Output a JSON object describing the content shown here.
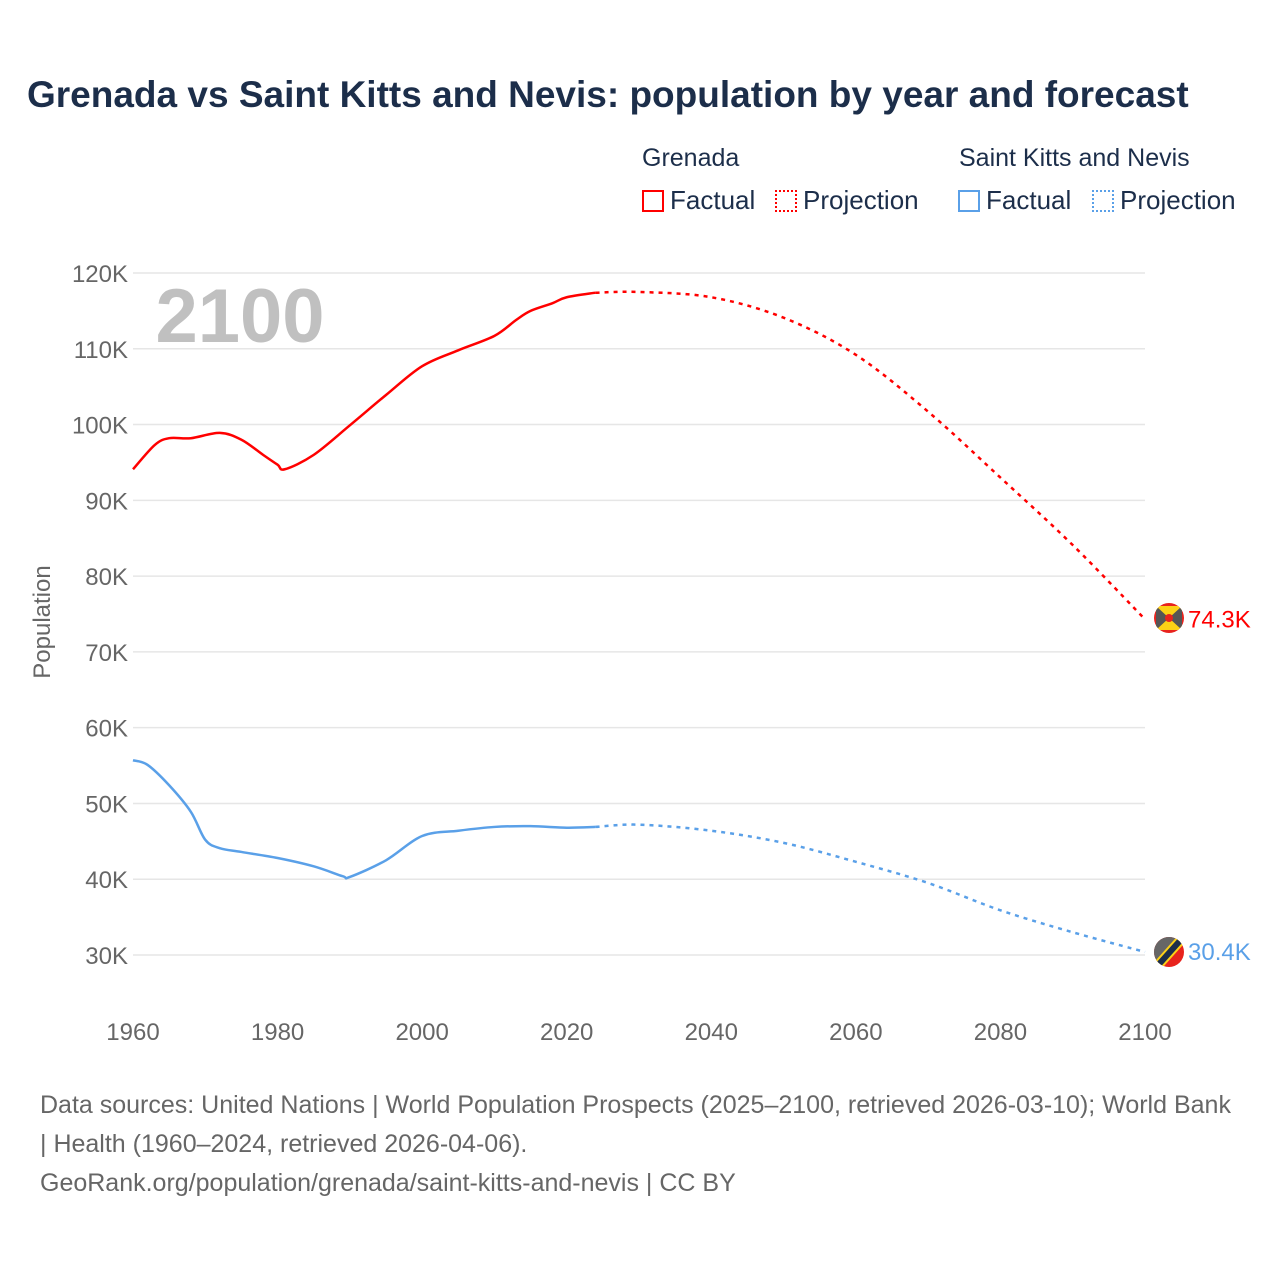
{
  "chart_data": {
    "type": "line",
    "title": "Grenada vs Saint Kitts and Nevis: population by year and forecast",
    "ylabel": "Population",
    "xlabel": "",
    "xlim": [
      1960,
      2100
    ],
    "ylim": [
      30000,
      120000
    ],
    "x_ticks": [
      "1960",
      "1980",
      "2000",
      "2020",
      "2040",
      "2060",
      "2080",
      "2100"
    ],
    "y_ticks": [
      "30K",
      "40K",
      "50K",
      "60K",
      "70K",
      "80K",
      "90K",
      "100K",
      "110K",
      "120K"
    ],
    "year_overlay": "2100",
    "grid": true,
    "legend": {
      "placement": "top-right",
      "groups": [
        {
          "name": "Grenada",
          "factual": "Factual",
          "projection": "Projection"
        },
        {
          "name": "Saint Kitts and Nevis",
          "factual": "Factual",
          "projection": "Projection"
        }
      ]
    },
    "series": [
      {
        "name": "Grenada",
        "color": "#ff0000",
        "end_label": "74.3K",
        "factual": [
          [
            1960,
            94100
          ],
          [
            1963,
            97300
          ],
          [
            1965,
            98200
          ],
          [
            1968,
            98200
          ],
          [
            1972,
            98900
          ],
          [
            1975,
            98000
          ],
          [
            1978,
            96000
          ],
          [
            1980,
            94700
          ],
          [
            1981,
            94100
          ],
          [
            1985,
            96000
          ],
          [
            1990,
            99900
          ],
          [
            1995,
            103900
          ],
          [
            2000,
            107700
          ],
          [
            2005,
            109800
          ],
          [
            2010,
            111700
          ],
          [
            2013,
            113800
          ],
          [
            2015,
            115000
          ],
          [
            2018,
            116000
          ],
          [
            2020,
            116800
          ],
          [
            2024,
            117400
          ]
        ],
        "projection": [
          [
            2024,
            117400
          ],
          [
            2030,
            117500
          ],
          [
            2040,
            116800
          ],
          [
            2050,
            114100
          ],
          [
            2060,
            109200
          ],
          [
            2070,
            101700
          ],
          [
            2080,
            93000
          ],
          [
            2090,
            84100
          ],
          [
            2100,
            74300
          ]
        ]
      },
      {
        "name": "Saint Kitts and Nevis",
        "color": "#5aa0e8",
        "end_label": "30.4K",
        "factual": [
          [
            1960,
            55700
          ],
          [
            1962,
            55100
          ],
          [
            1965,
            52400
          ],
          [
            1968,
            48900
          ],
          [
            1970,
            45200
          ],
          [
            1972,
            44100
          ],
          [
            1975,
            43600
          ],
          [
            1980,
            42800
          ],
          [
            1985,
            41700
          ],
          [
            1989,
            40400
          ],
          [
            1990,
            40300
          ],
          [
            1995,
            42500
          ],
          [
            2000,
            45700
          ],
          [
            2005,
            46400
          ],
          [
            2010,
            46900
          ],
          [
            2015,
            47000
          ],
          [
            2020,
            46800
          ],
          [
            2024,
            46900
          ]
        ],
        "projection": [
          [
            2024,
            46900
          ],
          [
            2030,
            47200
          ],
          [
            2040,
            46400
          ],
          [
            2050,
            44800
          ],
          [
            2060,
            42300
          ],
          [
            2070,
            39500
          ],
          [
            2080,
            35900
          ],
          [
            2090,
            33000
          ],
          [
            2100,
            30400
          ]
        ]
      }
    ]
  },
  "footer": {
    "sources": "Data sources: United Nations | World Population Prospects (2025–2100, retrieved 2026-03-10); World Bank | Health (1960–2024, retrieved 2026-04-06).",
    "link": "GeoRank.org/population/grenada/saint-kitts-and-nevis | CC BY"
  }
}
